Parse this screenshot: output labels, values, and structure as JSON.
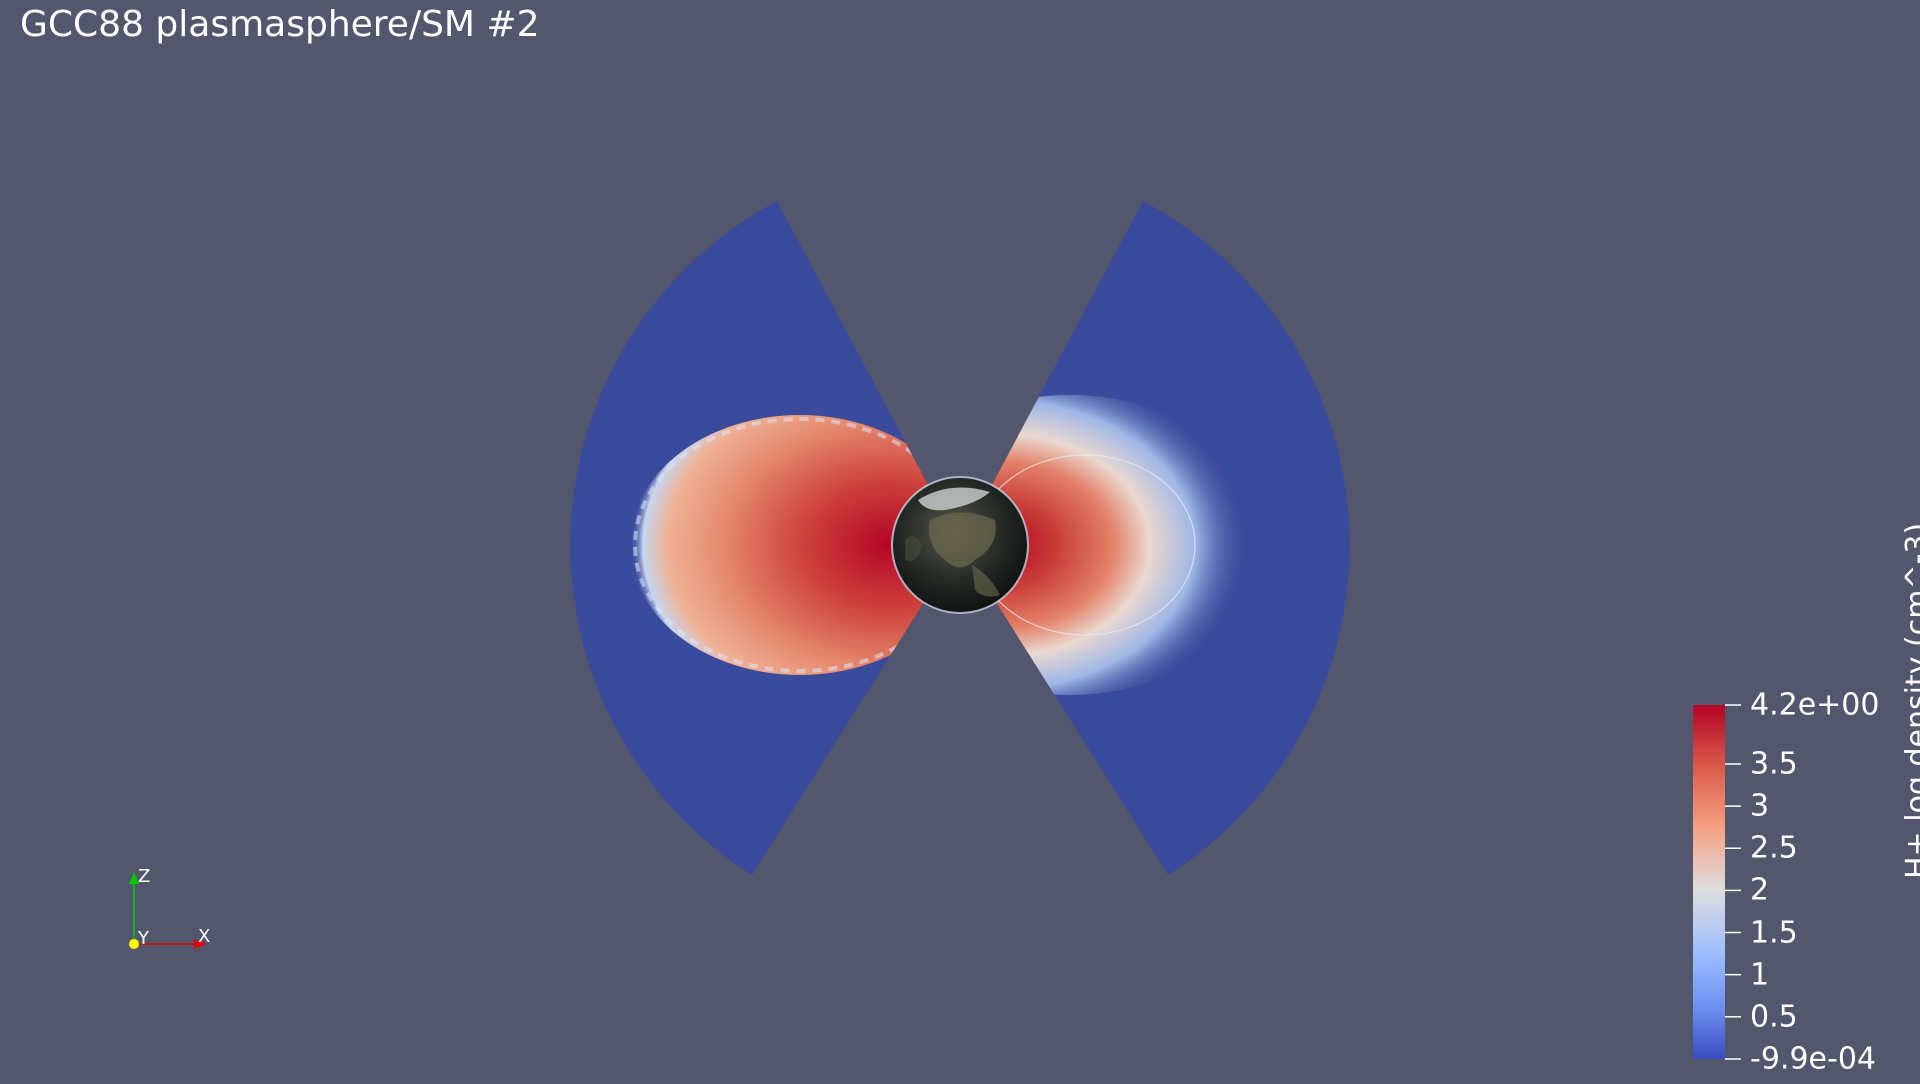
{
  "title": "GCC88 plasmasphere/SM #2",
  "colorbar": {
    "title": "H+ log density (cm^-3)",
    "ticks": [
      {
        "value": 4.2,
        "label": "4.2e+00"
      },
      {
        "value": 3.5,
        "label": "3.5"
      },
      {
        "value": 3.0,
        "label": "3"
      },
      {
        "value": 2.5,
        "label": "2.5"
      },
      {
        "value": 2.0,
        "label": "2"
      },
      {
        "value": 1.5,
        "label": "1.5"
      },
      {
        "value": 1.0,
        "label": "1"
      },
      {
        "value": 0.5,
        "label": "0.5"
      },
      {
        "value": -0.00099,
        "label": "-9.9e-04"
      }
    ],
    "range": [
      -0.00099,
      4.2
    ],
    "colors": {
      "low": "#3b4cc0",
      "mid": "#dddddd",
      "high": "#b40426"
    }
  },
  "axes": {
    "z_label": "Z",
    "y_label": "Y",
    "x_label": "X",
    "z_color": "#00cc00",
    "y_color": "#ffff00",
    "x_color": "#e00000"
  },
  "colors": {
    "background": "#52576e",
    "sector_fill": "#3a4a9c",
    "earth": "#1a1a1a"
  },
  "icons": {
    "earth": "earth-globe-icon",
    "orientation": "axes-triad-icon"
  }
}
